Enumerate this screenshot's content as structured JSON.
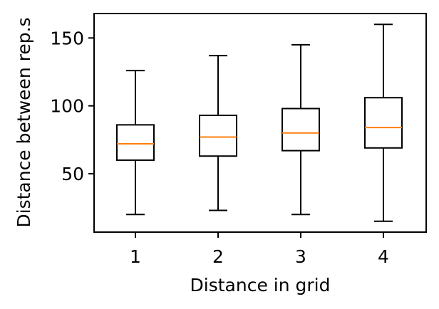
{
  "chart_data": {
    "type": "box",
    "title": "",
    "xlabel": "Distance in grid",
    "ylabel": "Distance between rep.s",
    "categories": [
      "1",
      "2",
      "3",
      "4"
    ],
    "yticks": [
      50,
      100,
      150
    ],
    "ylim": [
      7,
      168
    ],
    "grid": false,
    "boxes": [
      {
        "category": "1",
        "whisker_low": 20,
        "q1": 60,
        "median": 72,
        "q3": 86,
        "whisker_high": 126
      },
      {
        "category": "2",
        "whisker_low": 23,
        "q1": 63,
        "median": 77,
        "q3": 93,
        "whisker_high": 137
      },
      {
        "category": "3",
        "whisker_low": 20,
        "q1": 67,
        "median": 80,
        "q3": 98,
        "whisker_high": 145
      },
      {
        "category": "4",
        "whisker_low": 15,
        "q1": 69,
        "median": 84,
        "q3": 106,
        "whisker_high": 160
      }
    ],
    "colors": {
      "box": "#000000",
      "median": "#ff7f0e"
    }
  }
}
